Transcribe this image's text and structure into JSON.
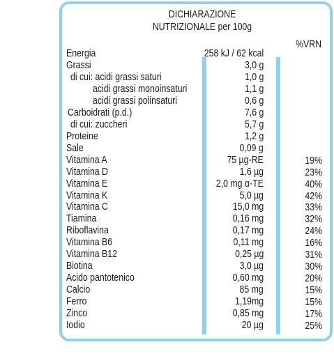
{
  "header": {
    "title": "DICHIARAZIONE",
    "subtitle": "NUTRIZIONALE per 100g",
    "vrn_header": "%VRN"
  },
  "rows": [
    {
      "name": "Energia",
      "amount": "258 kJ / 62 kcal"
    },
    {
      "name": "Grassi",
      "amount": "3,0 g"
    },
    {
      "name": "di cui: acidi grassi saturi",
      "amount": "1,0 g"
    },
    {
      "name": "acidi grassi monoinsaturi",
      "amount": "1,1 g"
    },
    {
      "name": "acidi grassi polinsaturi",
      "amount": "0,6 g"
    },
    {
      "name": "Carboidrati (p.d.)",
      "amount": "7,6 g"
    },
    {
      "name": "di cui: zuccheri",
      "amount": "5,7 g"
    },
    {
      "name": "Proteine",
      "amount": "1,2 g"
    },
    {
      "name": "Sale",
      "amount": "0,09 g"
    },
    {
      "name": "Vitamina A",
      "amount": "75 µg-RE",
      "vrn": "19%"
    },
    {
      "name": "Vitamina D",
      "amount": "1,6 µg",
      "vrn": "23%"
    },
    {
      "name": "Vitamina E",
      "amount": "2,0 mg α-TE",
      "vrn": "40%"
    },
    {
      "name": "Vitamina K",
      "amount": "5,0 µg",
      "vrn": "42%"
    },
    {
      "name": "Vitamina C",
      "amount": "15,0 mg",
      "vrn": "33%"
    },
    {
      "name": "Tiamina",
      "amount": "0,16 mg",
      "vrn": "32%"
    },
    {
      "name": "Riboflavina",
      "amount": "0,17 mg",
      "vrn": "24%"
    },
    {
      "name": "Vitamina B6",
      "amount": "0,11 mg",
      "vrn": "16%"
    },
    {
      "name": "Vitamina B12",
      "amount": "0,25 µg",
      "vrn": "31%"
    },
    {
      "name": "Biotina",
      "amount": "3,0 µg",
      "vrn": "30%"
    },
    {
      "name": "Acido pantotenico",
      "amount": "0,60 mg",
      "vrn": "20%"
    },
    {
      "name": "Calcio",
      "amount": "85 mg",
      "vrn": "15%"
    },
    {
      "name": "Ferro",
      "amount": "1,19mg",
      "vrn": "15%"
    },
    {
      "name": "Zinco",
      "amount": "0,85 mg",
      "vrn": "17%"
    },
    {
      "name": "Iodio",
      "amount": "20 µg",
      "vrn": "25%"
    }
  ]
}
